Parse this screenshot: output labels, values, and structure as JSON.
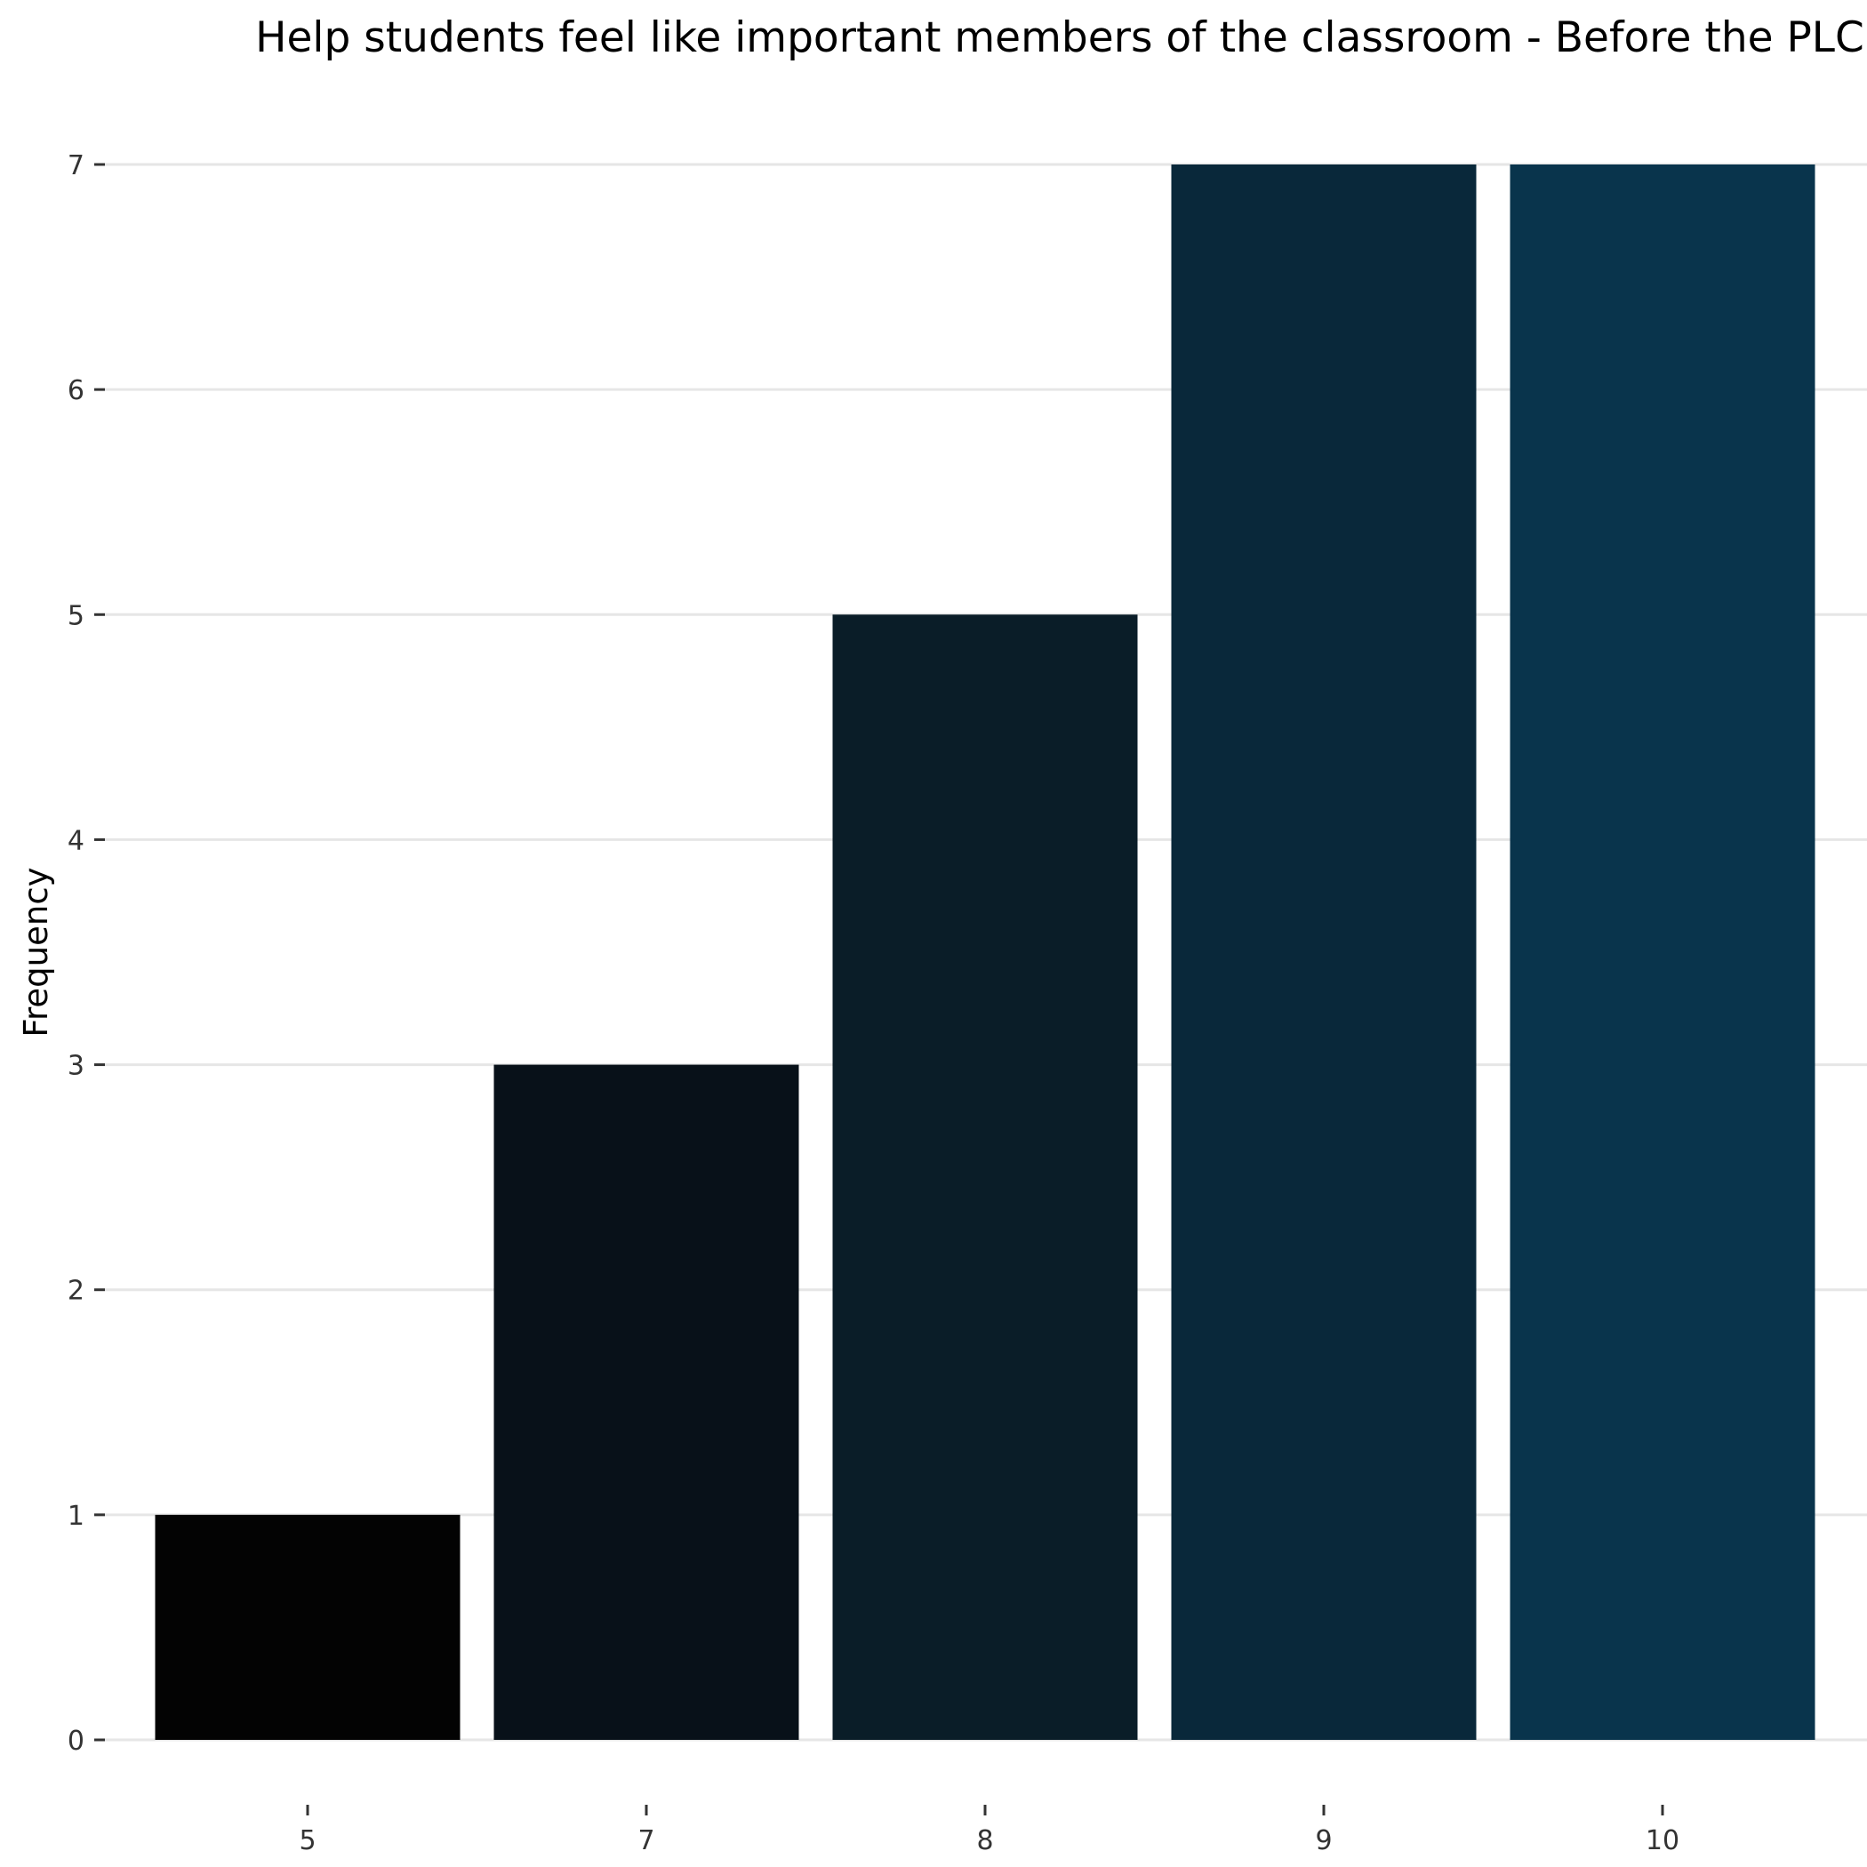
{
  "chart_data": {
    "type": "bar",
    "title": "Help students feel like important members of the classroom - Before the PLC",
    "xlabel": "",
    "ylabel": "Frequency",
    "categories": [
      "5",
      "7",
      "8",
      "9",
      "10"
    ],
    "values": [
      1,
      3,
      5,
      7,
      7
    ],
    "ylim": [
      0,
      7
    ],
    "yticks": [
      0,
      1,
      2,
      3,
      4,
      5,
      6,
      7
    ],
    "grid": "horizontal",
    "legend": "none",
    "colors": [
      "#030303",
      "#081119",
      "#0a1d28",
      "#09283a",
      "#09344c"
    ]
  }
}
